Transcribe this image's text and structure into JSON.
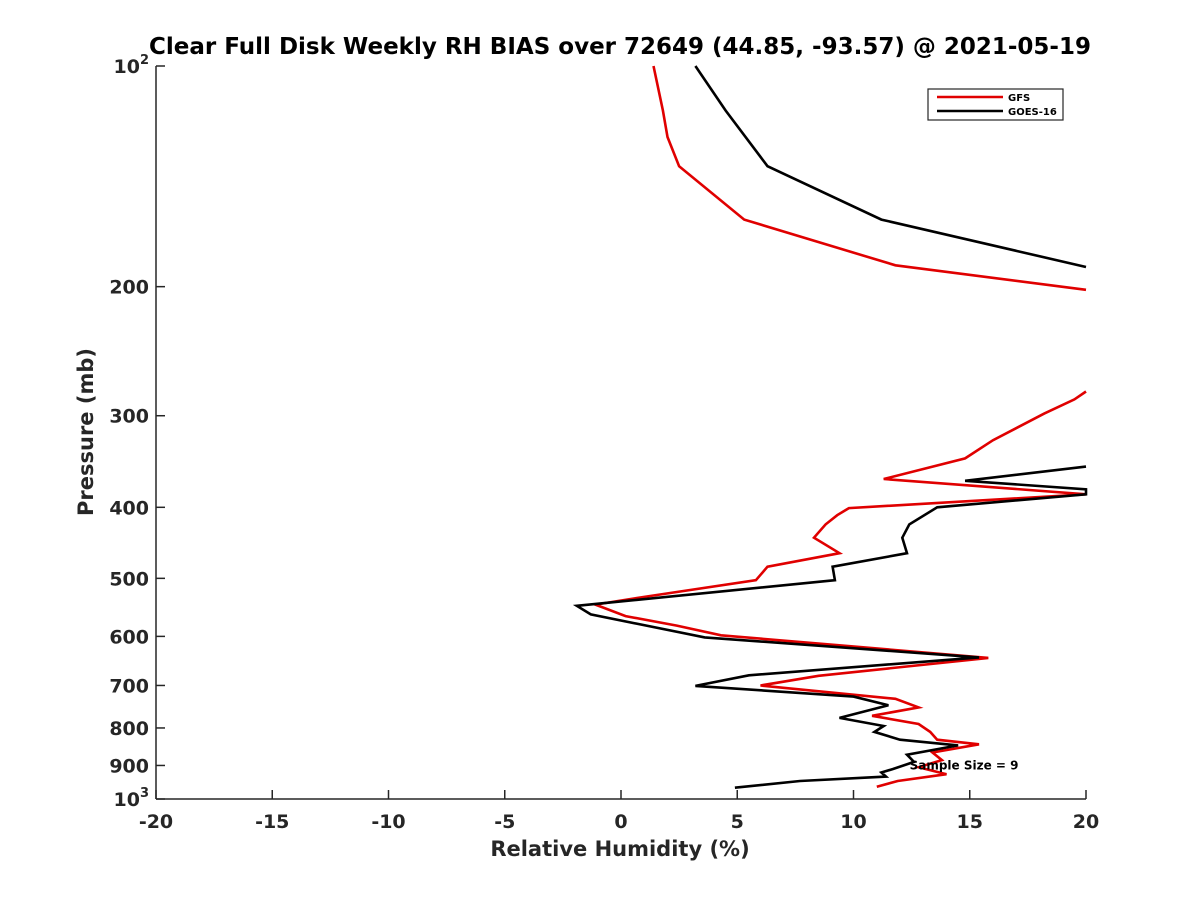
{
  "chart_data": {
    "type": "line",
    "title": "Clear Full Disk Weekly RH BIAS over 72649 (44.85, -93.57) @ 2021-05-19",
    "xlabel": "Relative Humidity (%)",
    "ylabel": "Pressure (mb)",
    "xlim": [
      -20,
      20
    ],
    "ylim": [
      100,
      1000
    ],
    "yscale": "log",
    "y_reversed": true,
    "grid": false,
    "legend_position": "top-right",
    "x_ticks": [
      -20,
      -15,
      -10,
      -5,
      0,
      5,
      10,
      15,
      20
    ],
    "x_tick_labels": [
      "-20",
      "-15",
      "-10",
      "-5",
      "0",
      "5",
      "10",
      "15",
      "20"
    ],
    "y_ticks": [
      {
        "value": 100,
        "base": "10",
        "exp": "2"
      },
      {
        "value": 200,
        "base": "200",
        "exp": ""
      },
      {
        "value": 300,
        "base": "300",
        "exp": ""
      },
      {
        "value": 400,
        "base": "400",
        "exp": ""
      },
      {
        "value": 500,
        "base": "500",
        "exp": ""
      },
      {
        "value": 600,
        "base": "600",
        "exp": ""
      },
      {
        "value": 700,
        "base": "700",
        "exp": ""
      },
      {
        "value": 800,
        "base": "800",
        "exp": ""
      },
      {
        "value": 900,
        "base": "900",
        "exp": ""
      },
      {
        "value": 1000,
        "base": "10",
        "exp": "3"
      }
    ],
    "annotation": "Sample Size = 9",
    "annotation_at": {
      "x": 12.5,
      "y": 900
    },
    "series": [
      {
        "name": "GFS",
        "color": "#e00000",
        "segments": [
          [
            {
              "x": 1.4,
              "y": 100
            },
            {
              "x": 1.8,
              "y": 115
            },
            {
              "x": 2.0,
              "y": 125
            },
            {
              "x": 2.5,
              "y": 137
            },
            {
              "x": 5.3,
              "y": 162
            },
            {
              "x": 11.8,
              "y": 187
            },
            {
              "x": 20.0,
              "y": 202
            }
          ],
          [
            {
              "x": 20.0,
              "y": 278
            },
            {
              "x": 19.5,
              "y": 285
            },
            {
              "x": 18.2,
              "y": 298
            },
            {
              "x": 16.0,
              "y": 324
            },
            {
              "x": 14.8,
              "y": 343
            },
            {
              "x": 11.3,
              "y": 366
            },
            {
              "x": 20.0,
              "y": 384
            },
            {
              "x": 9.8,
              "y": 401
            },
            {
              "x": 9.3,
              "y": 410
            },
            {
              "x": 8.8,
              "y": 422
            },
            {
              "x": 8.3,
              "y": 440
            },
            {
              "x": 9.4,
              "y": 462
            },
            {
              "x": 6.3,
              "y": 482
            },
            {
              "x": 5.8,
              "y": 503
            },
            {
              "x": 1.0,
              "y": 530
            },
            {
              "x": -1.1,
              "y": 543
            },
            {
              "x": 0.2,
              "y": 563
            },
            {
              "x": 2.4,
              "y": 580
            },
            {
              "x": 4.3,
              "y": 598
            },
            {
              "x": 15.8,
              "y": 642
            },
            {
              "x": 8.5,
              "y": 679
            },
            {
              "x": 6.0,
              "y": 700
            },
            {
              "x": 11.8,
              "y": 730
            },
            {
              "x": 12.8,
              "y": 750
            },
            {
              "x": 10.8,
              "y": 770
            },
            {
              "x": 12.8,
              "y": 790
            },
            {
              "x": 13.3,
              "y": 810
            },
            {
              "x": 13.6,
              "y": 830
            },
            {
              "x": 15.4,
              "y": 842
            },
            {
              "x": 13.4,
              "y": 864
            },
            {
              "x": 13.8,
              "y": 885
            },
            {
              "x": 12.8,
              "y": 905
            },
            {
              "x": 14.0,
              "y": 925
            },
            {
              "x": 11.9,
              "y": 945
            },
            {
              "x": 11.0,
              "y": 962
            }
          ]
        ]
      },
      {
        "name": "GOES-16",
        "color": "#000000",
        "segments": [
          [
            {
              "x": 3.2,
              "y": 100
            },
            {
              "x": 4.5,
              "y": 115
            },
            {
              "x": 6.3,
              "y": 137
            },
            {
              "x": 11.2,
              "y": 162
            },
            {
              "x": 20.0,
              "y": 188
            }
          ],
          [
            {
              "x": 20.0,
              "y": 352
            },
            {
              "x": 14.8,
              "y": 368
            },
            {
              "x": 20.0,
              "y": 378
            },
            {
              "x": 20.0,
              "y": 384
            },
            {
              "x": 13.6,
              "y": 400
            },
            {
              "x": 12.4,
              "y": 422
            },
            {
              "x": 12.1,
              "y": 440
            },
            {
              "x": 12.3,
              "y": 462
            },
            {
              "x": 9.1,
              "y": 482
            },
            {
              "x": 9.2,
              "y": 503
            },
            {
              "x": -1.9,
              "y": 545
            },
            {
              "x": -1.3,
              "y": 560
            },
            {
              "x": 3.6,
              "y": 602
            },
            {
              "x": 15.4,
              "y": 641
            },
            {
              "x": 5.5,
              "y": 678
            },
            {
              "x": 3.2,
              "y": 701
            },
            {
              "x": 10.0,
              "y": 725
            },
            {
              "x": 11.5,
              "y": 745
            },
            {
              "x": 9.4,
              "y": 775
            },
            {
              "x": 11.3,
              "y": 795
            },
            {
              "x": 10.9,
              "y": 810
            },
            {
              "x": 12.0,
              "y": 830
            },
            {
              "x": 14.5,
              "y": 845
            },
            {
              "x": 12.3,
              "y": 870
            },
            {
              "x": 12.6,
              "y": 890
            },
            {
              "x": 11.7,
              "y": 910
            },
            {
              "x": 11.2,
              "y": 920
            },
            {
              "x": 11.4,
              "y": 932
            },
            {
              "x": 7.7,
              "y": 945
            },
            {
              "x": 4.9,
              "y": 965
            }
          ]
        ]
      }
    ]
  }
}
